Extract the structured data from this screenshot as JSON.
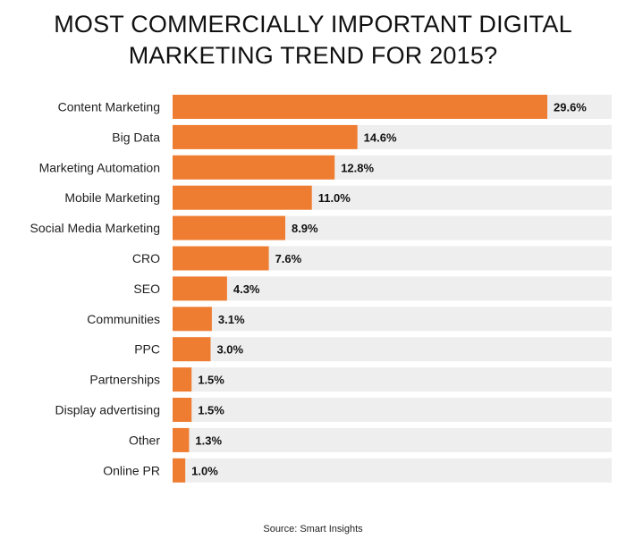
{
  "chart_data": {
    "type": "bar",
    "orientation": "horizontal",
    "title_lines": [
      "MOST COMMERCIALLY IMPORTANT DIGITAL",
      "MARKETING TREND FOR 2015?"
    ],
    "categories": [
      "Content Marketing",
      "Big Data",
      "Marketing Automation",
      "Mobile Marketing",
      "Social Media Marketing",
      "CRO",
      "SEO",
      "Communities",
      "PPC",
      "Partnerships",
      "Display advertising",
      "Other",
      "Online PR"
    ],
    "values": [
      29.6,
      14.6,
      12.8,
      11.0,
      8.9,
      7.6,
      4.3,
      3.1,
      3.0,
      1.5,
      1.5,
      1.3,
      1.0
    ],
    "value_labels": [
      "29.6%",
      "14.6%",
      "12.8%",
      "11.0%",
      "8.9%",
      "7.6%",
      "4.3%",
      "3.1%",
      "3.0%",
      "1.5%",
      "1.5%",
      "1.3%",
      "1.0%"
    ],
    "xlim": [
      0,
      29.6
    ],
    "grid": false,
    "legend": "none",
    "source": "Source: Smart Insights"
  },
  "colors": {
    "bar": "#EF7D31",
    "track": "#EEEEEE"
  }
}
